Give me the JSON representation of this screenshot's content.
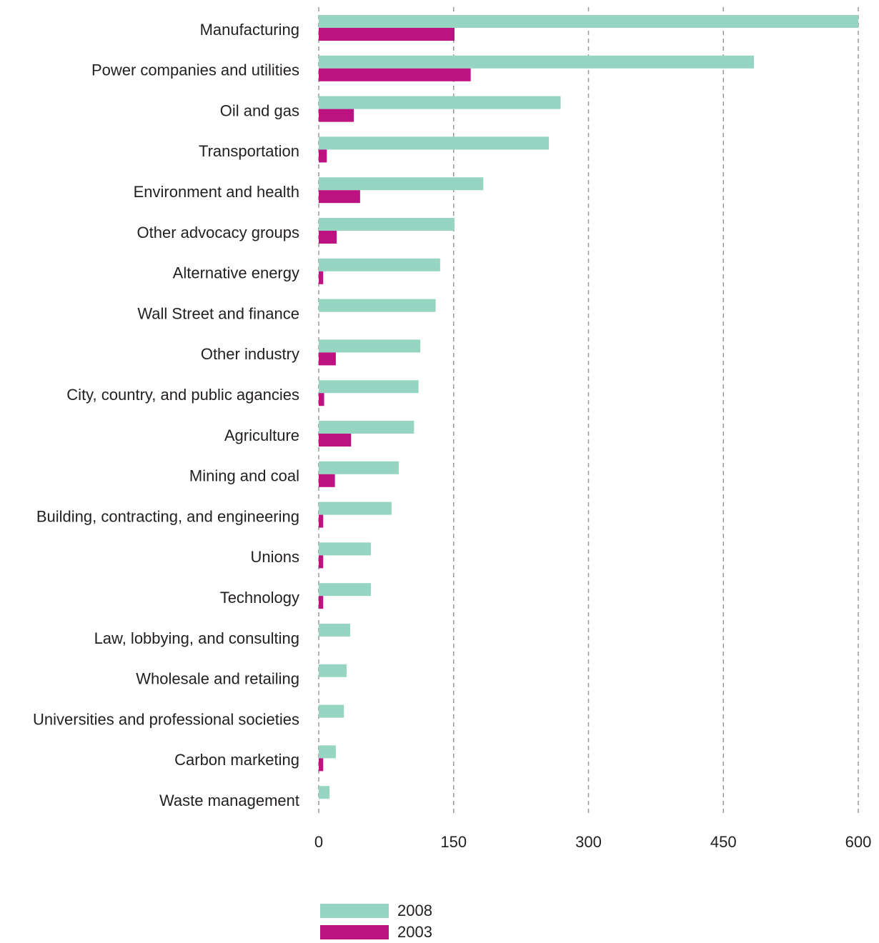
{
  "chart_data": {
    "type": "bar",
    "orientation": "horizontal",
    "categories": [
      "Manufacturing",
      "Power companies and utilities",
      "Oil and gas",
      "Transportation",
      "Environment and health",
      "Other advocacy groups",
      "Alternative energy",
      "Wall Street and finance",
      "Other industry",
      "City, country, and public agancies",
      "Agriculture",
      "Mining and coal",
      "Building, contracting, and engineering",
      "Unions",
      "Technology",
      "Law, lobbying, and consulting",
      "Wholesale and retailing",
      "Universities and professional societies",
      "Carbon marketing",
      "Waste management"
    ],
    "series": [
      {
        "name": "2008",
        "color": "#97d5c3",
        "values": [
          600,
          484,
          269,
          256,
          183,
          151,
          135,
          130,
          113,
          111,
          106,
          89,
          81,
          58,
          58,
          35,
          31,
          28,
          19,
          12
        ]
      },
      {
        "name": "2003",
        "color": "#bd1281",
        "values": [
          151,
          169,
          39,
          9,
          46,
          20,
          5,
          0,
          19,
          6,
          36,
          18,
          5,
          5,
          5,
          0,
          0,
          0,
          5,
          0
        ]
      }
    ],
    "xlim": [
      0,
      600
    ],
    "xticks": [
      "0",
      "150",
      "300",
      "450",
      "600"
    ],
    "xtick_values": [
      0,
      150,
      300,
      450,
      600
    ],
    "grid": "vertical dashed",
    "legend_position": "bottom",
    "title": "",
    "xlabel": "",
    "ylabel": ""
  }
}
